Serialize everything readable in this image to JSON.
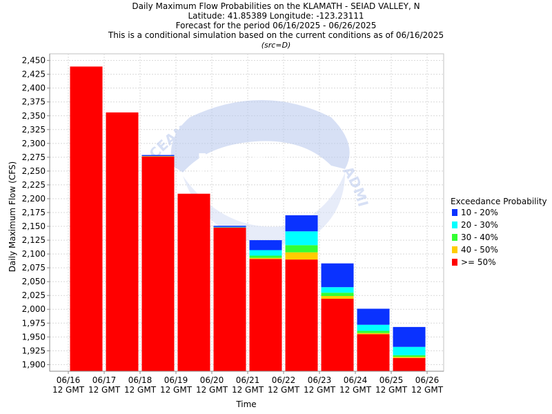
{
  "title_lines": [
    "Daily Maximum Flow Probabilities on the KLAMATH - SEIAD VALLEY, N",
    "Latitude: 41.85389 Longitude: -123.23111",
    "Forecast for the period 06/16/2025 - 06/26/2025",
    "This is a conditional simulation based on the current conditions as of 06/16/2025"
  ],
  "subtitle": "(src=D)",
  "watermark": {
    "text": "NOAA",
    "ring_text": "OCEANIC AND ATMOSPHERIC ADMINISTRATION",
    "color": "#b8c8ee"
  },
  "chart_data": {
    "type": "bar",
    "stacked": true,
    "xlabel": "Time",
    "ylabel": "Daily Maximum Flow (CFS)",
    "ylim": [
      1888,
      2462
    ],
    "y_ticks": [
      1900,
      1925,
      1950,
      1975,
      2000,
      2025,
      2050,
      2075,
      2100,
      2125,
      2150,
      2175,
      2200,
      2225,
      2250,
      2275,
      2300,
      2325,
      2350,
      2375,
      2400,
      2425,
      2450
    ],
    "y_tick_labels": [
      "1,900",
      "1,925",
      "1,950",
      "1,975",
      "2,000",
      "2,025",
      "2,050",
      "2,075",
      "2,100",
      "2,125",
      "2,150",
      "2,175",
      "2,200",
      "2,225",
      "2,250",
      "2,275",
      "2,300",
      "2,325",
      "2,350",
      "2,375",
      "2,400",
      "2,425",
      "2,450"
    ],
    "x_ticks": [
      {
        "date": "06/16",
        "time": "12 GMT"
      },
      {
        "date": "06/17",
        "time": "12 GMT"
      },
      {
        "date": "06/18",
        "time": "12 GMT"
      },
      {
        "date": "06/19",
        "time": "12 GMT"
      },
      {
        "date": "06/20",
        "time": "12 GMT"
      },
      {
        "date": "06/21",
        "time": "12 GMT"
      },
      {
        "date": "06/22",
        "time": "12 GMT"
      },
      {
        "date": "06/23",
        "time": "12 GMT"
      },
      {
        "date": "06/24",
        "time": "12 GMT"
      },
      {
        "date": "06/25",
        "time": "12 GMT"
      },
      {
        "date": "06/26",
        "time": "12 GMT"
      }
    ],
    "legend": {
      "title": "Exceedance Probability",
      "placement": "right",
      "entries": [
        {
          "label": "10 - 20%",
          "color": "#0a32ff"
        },
        {
          "label": "20 - 30%",
          "color": "#00ffff"
        },
        {
          "label": "30 - 40%",
          "color": "#33ff33"
        },
        {
          "label": "40 - 50%",
          "color": "#ffcc00"
        },
        {
          "label": ">= 50%",
          "color": "#ff0000"
        }
      ]
    },
    "bars": [
      {
        "day": "06/16",
        "levels": [
          2439,
          2439,
          2439,
          2439,
          2439
        ]
      },
      {
        "day": "06/17",
        "levels": [
          2356,
          2356,
          2356,
          2356,
          2356
        ]
      },
      {
        "day": "06/18",
        "levels": [
          2276,
          2277,
          2277,
          2277,
          2279
        ]
      },
      {
        "day": "06/19",
        "levels": [
          2209,
          2209,
          2209,
          2209,
          2209
        ]
      },
      {
        "day": "06/20",
        "levels": [
          2148,
          2148,
          2148,
          2149,
          2151
        ]
      },
      {
        "day": "06/21",
        "levels": [
          2091,
          2093,
          2097,
          2107,
          2125
        ]
      },
      {
        "day": "06/22",
        "levels": [
          2090,
          2103,
          2116,
          2141,
          2170
        ]
      },
      {
        "day": "06/23",
        "levels": [
          2019,
          2024,
          2030,
          2040,
          2083
        ]
      },
      {
        "day": "06/24",
        "levels": [
          1955,
          1957,
          1961,
          1972,
          2001
        ]
      },
      {
        "day": "06/25",
        "levels": [
          1912,
          1914,
          1917,
          1932,
          1968
        ]
      }
    ],
    "grid": true
  }
}
